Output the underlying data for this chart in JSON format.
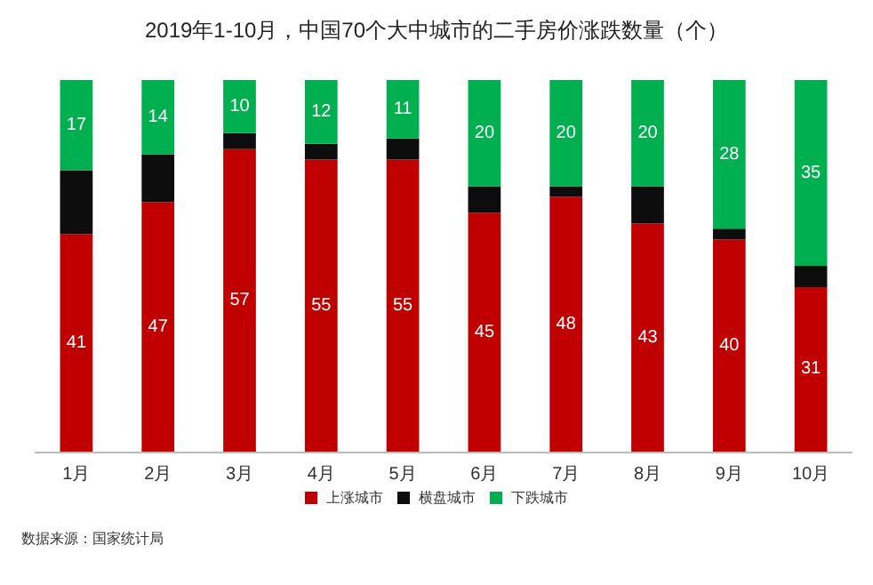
{
  "chart_data": {
    "type": "bar",
    "title": "2019年1-10月，中国70个大中城市的二手房价涨跌数量（个）",
    "categories": [
      "1月",
      "2月",
      "3月",
      "4月",
      "5月",
      "6月",
      "7月",
      "8月",
      "9月",
      "10月"
    ],
    "stacked": true,
    "series": [
      {
        "name": "上涨城市",
        "color": "#c00000",
        "values": [
          41,
          47,
          57,
          55,
          55,
          45,
          48,
          43,
          40,
          31
        ],
        "value_labels": [
          "41",
          "47",
          "57",
          "55",
          "55",
          "45",
          "48",
          "43",
          "40",
          "31"
        ]
      },
      {
        "name": "横盘城市",
        "color": "#0d0d0d",
        "values": [
          12,
          9,
          3,
          3,
          4,
          5,
          2,
          7,
          2,
          4
        ]
      },
      {
        "name": "下跌城市",
        "color": "#00b050",
        "values": [
          17,
          14,
          10,
          12,
          11,
          20,
          20,
          20,
          28,
          35
        ],
        "value_labels": [
          "17",
          "14",
          "10",
          "12",
          "11",
          "20",
          "20",
          "20",
          "28",
          "35"
        ]
      }
    ],
    "legend": "bottom",
    "annotations": [
      "数据来源：国家统计局"
    ]
  }
}
